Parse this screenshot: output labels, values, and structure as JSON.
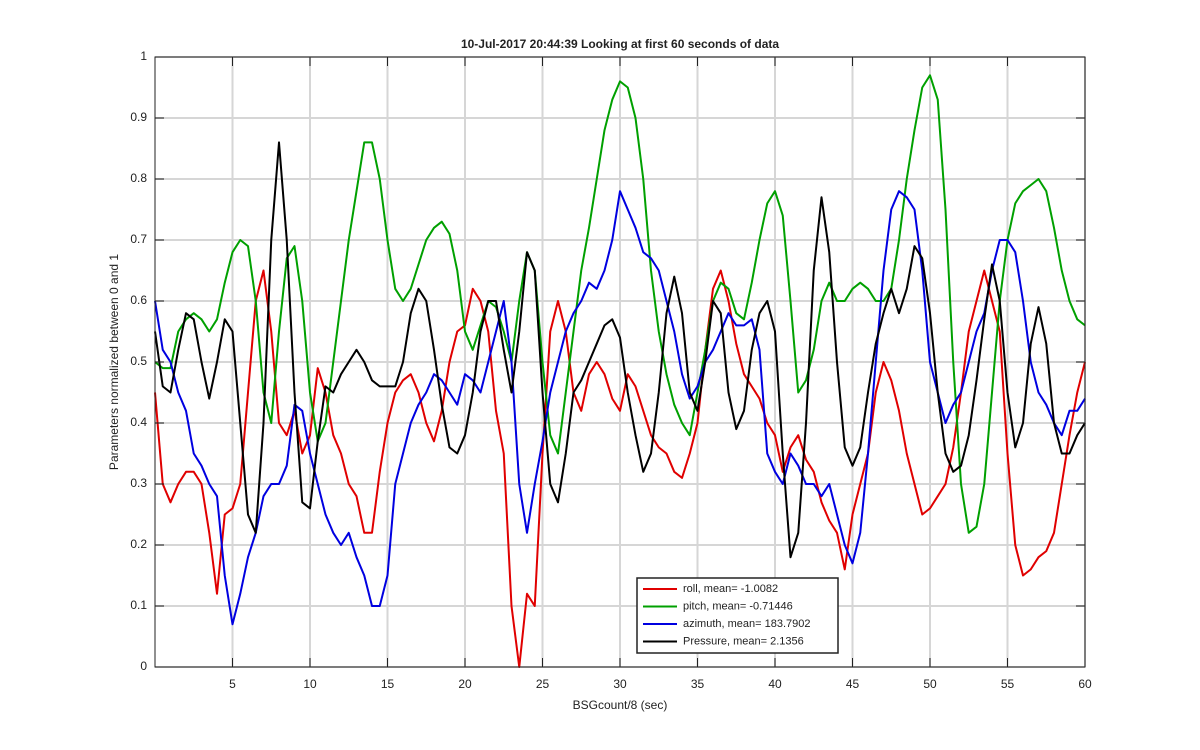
{
  "chart_data": {
    "type": "line",
    "title": "10-Jul-2017 20:44:39 Looking at first 60 seconds of data",
    "xlabel": "BSGcount/8 (sec)",
    "ylabel": "Parameters normalized between 0 and 1",
    "xlim": [
      0,
      60
    ],
    "ylim": [
      0,
      1
    ],
    "xticks": [
      5,
      10,
      15,
      20,
      25,
      30,
      35,
      40,
      45,
      50,
      55,
      60
    ],
    "yticks": [
      0,
      0.1,
      0.2,
      0.3,
      0.4,
      0.5,
      0.6,
      0.7,
      0.8,
      0.9,
      1
    ],
    "grid": true,
    "legend": "bottom",
    "x": [
      0,
      0.5,
      1,
      1.5,
      2,
      2.5,
      3,
      3.5,
      4,
      4.5,
      5,
      5.5,
      6,
      6.5,
      7,
      7.5,
      8,
      8.5,
      9,
      9.5,
      10,
      10.5,
      11,
      11.5,
      12,
      12.5,
      13,
      13.5,
      14,
      14.5,
      15,
      15.5,
      16,
      16.5,
      17,
      17.5,
      18,
      18.5,
      19,
      19.5,
      20,
      20.5,
      21,
      21.5,
      22,
      22.5,
      23,
      23.5,
      24,
      24.5,
      25,
      25.5,
      26,
      26.5,
      27,
      27.5,
      28,
      28.5,
      29,
      29.5,
      30,
      30.5,
      31,
      31.5,
      32,
      32.5,
      33,
      33.5,
      34,
      34.5,
      35,
      35.5,
      36,
      36.5,
      37,
      37.5,
      38,
      38.5,
      39,
      39.5,
      40,
      40.5,
      41,
      41.5,
      42,
      42.5,
      43,
      43.5,
      44,
      44.5,
      45,
      45.5,
      46,
      46.5,
      47,
      47.5,
      48,
      48.5,
      49,
      49.5,
      50,
      50.5,
      51,
      51.5,
      52,
      52.5,
      53,
      53.5,
      54,
      54.5,
      55,
      55.5,
      56,
      56.5,
      57,
      57.5,
      58,
      58.5,
      59,
      59.5,
      60
    ],
    "series": [
      {
        "name": "roll, mean= -1.0082",
        "color": "#e00000",
        "values": [
          0.45,
          0.3,
          0.27,
          0.3,
          0.32,
          0.32,
          0.3,
          0.22,
          0.12,
          0.25,
          0.26,
          0.3,
          0.45,
          0.6,
          0.65,
          0.55,
          0.4,
          0.38,
          0.42,
          0.35,
          0.38,
          0.49,
          0.45,
          0.38,
          0.35,
          0.3,
          0.28,
          0.22,
          0.22,
          0.32,
          0.4,
          0.45,
          0.47,
          0.48,
          0.45,
          0.4,
          0.37,
          0.42,
          0.5,
          0.55,
          0.56,
          0.62,
          0.6,
          0.55,
          0.42,
          0.35,
          0.1,
          0.0,
          0.12,
          0.1,
          0.35,
          0.55,
          0.6,
          0.55,
          0.45,
          0.42,
          0.48,
          0.5,
          0.48,
          0.44,
          0.42,
          0.48,
          0.46,
          0.42,
          0.38,
          0.36,
          0.35,
          0.32,
          0.31,
          0.35,
          0.4,
          0.52,
          0.62,
          0.65,
          0.6,
          0.53,
          0.48,
          0.46,
          0.44,
          0.4,
          0.38,
          0.32,
          0.36,
          0.38,
          0.34,
          0.32,
          0.27,
          0.24,
          0.22,
          0.16,
          0.25,
          0.3,
          0.35,
          0.45,
          0.5,
          0.47,
          0.42,
          0.35,
          0.3,
          0.25,
          0.26,
          0.28,
          0.3,
          0.36,
          0.45,
          0.55,
          0.6,
          0.65,
          0.6,
          0.55,
          0.35,
          0.2,
          0.15,
          0.16,
          0.18,
          0.19,
          0.22,
          0.3,
          0.38,
          0.45,
          0.5
        ]
      },
      {
        "name": "pitch, mean= -0.71446",
        "color": "#00a000",
        "values": [
          0.5,
          0.49,
          0.49,
          0.55,
          0.57,
          0.58,
          0.57,
          0.55,
          0.57,
          0.63,
          0.68,
          0.7,
          0.69,
          0.6,
          0.45,
          0.4,
          0.55,
          0.67,
          0.69,
          0.6,
          0.45,
          0.37,
          0.4,
          0.5,
          0.6,
          0.7,
          0.78,
          0.86,
          0.86,
          0.8,
          0.7,
          0.62,
          0.6,
          0.62,
          0.66,
          0.7,
          0.72,
          0.73,
          0.71,
          0.65,
          0.55,
          0.52,
          0.56,
          0.6,
          0.59,
          0.55,
          0.5,
          0.6,
          0.68,
          0.65,
          0.5,
          0.38,
          0.35,
          0.45,
          0.55,
          0.65,
          0.72,
          0.8,
          0.88,
          0.93,
          0.96,
          0.95,
          0.9,
          0.8,
          0.65,
          0.55,
          0.48,
          0.43,
          0.4,
          0.38,
          0.45,
          0.52,
          0.6,
          0.63,
          0.62,
          0.58,
          0.57,
          0.63,
          0.7,
          0.76,
          0.78,
          0.74,
          0.6,
          0.45,
          0.47,
          0.52,
          0.6,
          0.63,
          0.6,
          0.6,
          0.62,
          0.63,
          0.62,
          0.6,
          0.6,
          0.62,
          0.7,
          0.8,
          0.88,
          0.95,
          0.97,
          0.93,
          0.75,
          0.5,
          0.3,
          0.22,
          0.23,
          0.3,
          0.45,
          0.6,
          0.7,
          0.76,
          0.78,
          0.79,
          0.8,
          0.78,
          0.72,
          0.65,
          0.6,
          0.57,
          0.56
        ]
      },
      {
        "name": "azimuth, mean= 183.7902",
        "color": "#0000e0",
        "values": [
          0.6,
          0.52,
          0.5,
          0.45,
          0.42,
          0.35,
          0.33,
          0.3,
          0.28,
          0.15,
          0.07,
          0.12,
          0.18,
          0.22,
          0.28,
          0.3,
          0.3,
          0.33,
          0.43,
          0.42,
          0.35,
          0.3,
          0.25,
          0.22,
          0.2,
          0.22,
          0.18,
          0.15,
          0.1,
          0.1,
          0.15,
          0.3,
          0.35,
          0.4,
          0.43,
          0.45,
          0.48,
          0.47,
          0.45,
          0.43,
          0.48,
          0.47,
          0.45,
          0.5,
          0.55,
          0.6,
          0.5,
          0.3,
          0.22,
          0.3,
          0.37,
          0.45,
          0.5,
          0.55,
          0.58,
          0.6,
          0.63,
          0.62,
          0.65,
          0.7,
          0.78,
          0.75,
          0.72,
          0.68,
          0.67,
          0.65,
          0.6,
          0.55,
          0.48,
          0.44,
          0.46,
          0.5,
          0.52,
          0.55,
          0.58,
          0.56,
          0.56,
          0.57,
          0.52,
          0.35,
          0.32,
          0.3,
          0.35,
          0.33,
          0.3,
          0.3,
          0.28,
          0.3,
          0.25,
          0.2,
          0.17,
          0.22,
          0.35,
          0.5,
          0.65,
          0.75,
          0.78,
          0.77,
          0.75,
          0.65,
          0.5,
          0.45,
          0.4,
          0.43,
          0.45,
          0.5,
          0.55,
          0.58,
          0.65,
          0.7,
          0.7,
          0.68,
          0.6,
          0.5,
          0.45,
          0.43,
          0.4,
          0.38,
          0.42,
          0.42,
          0.44
        ]
      },
      {
        "name": "Pressure, mean= 2.1356",
        "color": "#000000",
        "values": [
          0.55,
          0.46,
          0.45,
          0.52,
          0.58,
          0.57,
          0.5,
          0.44,
          0.5,
          0.57,
          0.55,
          0.4,
          0.25,
          0.22,
          0.4,
          0.7,
          0.86,
          0.7,
          0.45,
          0.27,
          0.26,
          0.37,
          0.46,
          0.45,
          0.48,
          0.5,
          0.52,
          0.5,
          0.47,
          0.46,
          0.46,
          0.46,
          0.5,
          0.58,
          0.62,
          0.6,
          0.52,
          0.43,
          0.36,
          0.35,
          0.38,
          0.45,
          0.55,
          0.6,
          0.6,
          0.52,
          0.45,
          0.55,
          0.68,
          0.65,
          0.45,
          0.3,
          0.27,
          0.35,
          0.45,
          0.47,
          0.5,
          0.53,
          0.56,
          0.57,
          0.54,
          0.45,
          0.38,
          0.32,
          0.35,
          0.45,
          0.58,
          0.64,
          0.58,
          0.45,
          0.42,
          0.5,
          0.6,
          0.58,
          0.45,
          0.39,
          0.42,
          0.52,
          0.58,
          0.6,
          0.55,
          0.35,
          0.18,
          0.22,
          0.4,
          0.65,
          0.77,
          0.68,
          0.5,
          0.36,
          0.33,
          0.36,
          0.45,
          0.53,
          0.58,
          0.62,
          0.58,
          0.62,
          0.69,
          0.67,
          0.58,
          0.45,
          0.35,
          0.32,
          0.33,
          0.38,
          0.47,
          0.57,
          0.66,
          0.6,
          0.45,
          0.36,
          0.4,
          0.53,
          0.59,
          0.53,
          0.4,
          0.35,
          0.35,
          0.38,
          0.4
        ]
      }
    ]
  }
}
